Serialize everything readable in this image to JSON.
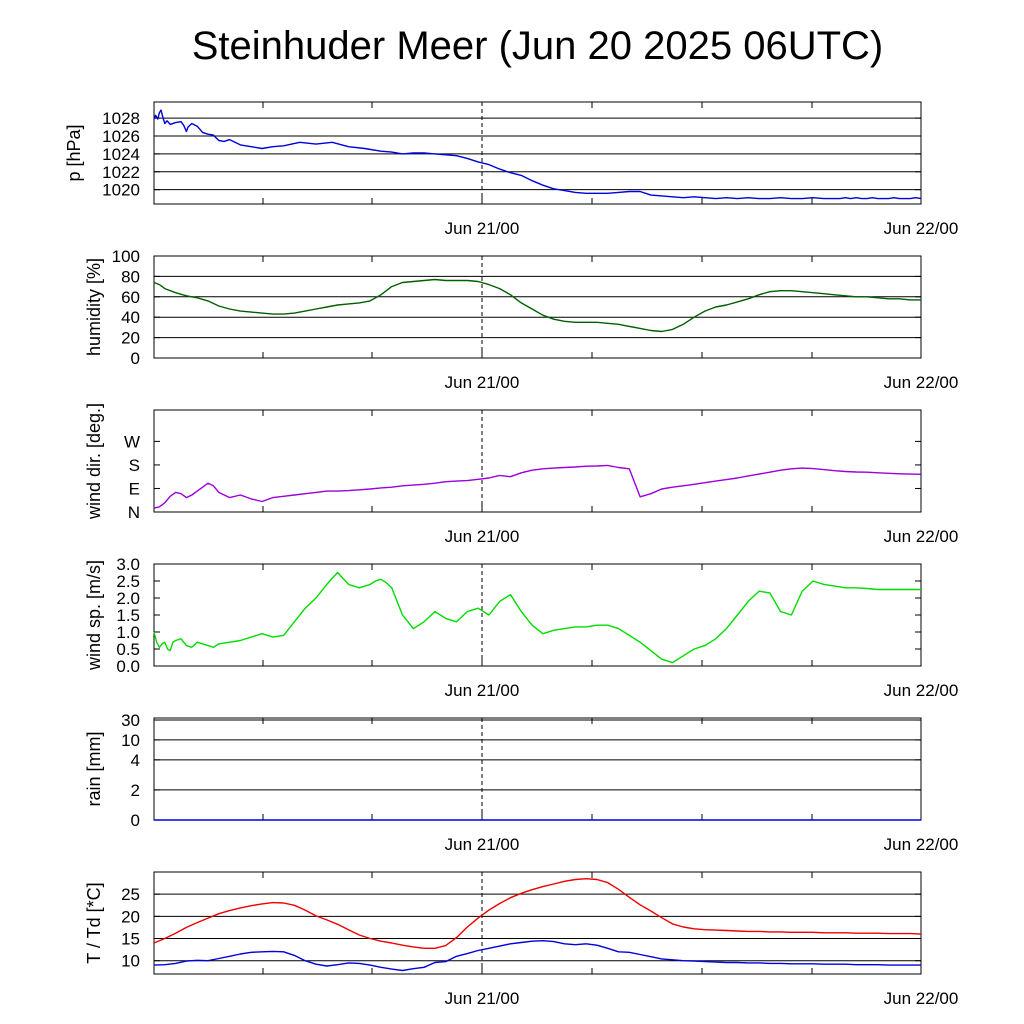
{
  "title": "Steinhuder Meer (Jun 20 2025 06UTC)",
  "x_axis": {
    "range": [
      "2025-06-20 06:00 UTC",
      "2025-06-22 00:00 UTC"
    ],
    "tick_labels": [
      {
        "label": "Jun 21/00",
        "time": "2025-06-21 00:00 UTC"
      },
      {
        "label": "Jun 22/00",
        "time": "2025-06-22 00:00 UTC"
      }
    ],
    "dashed_marker_time": "2025-06-21 00:00 UTC"
  },
  "chart_data": [
    {
      "type": "line",
      "ylabel": "p [hPa]",
      "ylim": [
        1018.4,
        1029.8
      ],
      "yticks": [
        1020,
        1022,
        1024,
        1026,
        1028
      ],
      "gridlines": [
        1020,
        1022,
        1024,
        1026,
        1028
      ],
      "series": [
        {
          "color": "#0000dd",
          "x_hours": [
            0,
            0.3,
            0.7,
            1.0,
            1.3,
            1.6,
            2.0,
            2.4,
            3,
            4,
            5,
            5.5,
            6,
            6.3,
            7,
            8,
            9,
            10,
            11,
            12,
            13,
            14,
            16,
            18,
            20,
            22,
            24,
            27,
            30,
            33,
            36,
            39,
            42,
            44,
            46,
            48,
            50,
            52,
            54,
            56,
            58,
            60,
            62,
            64,
            66,
            68,
            70,
            72,
            74,
            76,
            78,
            80,
            82,
            84,
            86,
            88,
            90,
            92,
            94,
            96,
            98,
            100,
            102,
            104,
            106,
            108,
            110,
            112,
            114,
            116,
            118,
            120,
            122,
            124,
            126,
            127,
            128,
            129,
            130,
            131,
            132,
            133,
            134,
            135,
            136,
            137,
            138,
            139,
            140,
            141,
            142
          ],
          "values": [
            1027.9,
            1028.3,
            1027.9,
            1028.6,
            1028.9,
            1028.2,
            1027.4,
            1027.7,
            1027.3,
            1027.5,
            1027.6,
            1027.2,
            1026.5,
            1027.0,
            1027.4,
            1027.1,
            1026.4,
            1026.2,
            1026.1,
            1025.5,
            1025.4,
            1025.6,
            1025.0,
            1024.8,
            1024.6,
            1024.8,
            1024.9,
            1025.3,
            1025.1,
            1025.3,
            1024.8,
            1024.6,
            1024.3,
            1024.2,
            1024.0,
            1024.1,
            1024.1,
            1024.0,
            1023.9,
            1023.8,
            1023.5,
            1023.1,
            1022.8,
            1022.3,
            1021.9,
            1021.6,
            1021.0,
            1020.5,
            1020.1,
            1019.9,
            1019.7,
            1019.6,
            1019.6,
            1019.6,
            1019.7,
            1019.8,
            1019.8,
            1019.4,
            1019.3,
            1019.2,
            1019.1,
            1019.2,
            1019.1,
            1019.0,
            1019.1,
            1019.0,
            1019.1,
            1019.0,
            1019.0,
            1019.1,
            1019.0,
            1019.0,
            1019.1,
            1019.0,
            1019.0,
            1019.0,
            1019.1,
            1019.0,
            1019.1,
            1019.0,
            1019.0,
            1019.1,
            1019.0,
            1019.0,
            1019.0,
            1019.1,
            1019.0,
            1019.0,
            1019.0,
            1019.1,
            1019.0
          ]
        }
      ]
    },
    {
      "type": "line",
      "ylabel": "humidity [%]",
      "ylim": [
        0,
        100
      ],
      "yticks": [
        0,
        20,
        40,
        60,
        80,
        100
      ],
      "gridlines": [
        20,
        40,
        60,
        80
      ],
      "series": [
        {
          "color": "#006000",
          "x_hours": [
            0,
            1,
            2,
            4,
            6,
            8,
            10,
            12,
            14,
            16,
            18,
            20,
            22,
            24,
            26,
            28,
            30,
            32,
            34,
            36,
            38,
            40,
            42,
            44,
            46,
            48,
            50,
            52,
            54,
            56,
            58,
            60,
            62,
            64,
            66,
            68,
            70,
            72,
            74,
            76,
            78,
            80,
            82,
            84,
            86,
            88,
            90,
            92,
            94,
            96,
            98,
            100,
            102,
            104,
            106,
            108,
            110,
            112,
            114,
            116,
            118,
            120,
            122,
            124,
            126,
            128,
            130,
            132,
            134,
            136,
            138,
            140,
            142
          ],
          "values": [
            74,
            72,
            68,
            64,
            61,
            59,
            56,
            51,
            48,
            46,
            45,
            44,
            43,
            43,
            44,
            46,
            48,
            50,
            52,
            53,
            54,
            56,
            62,
            70,
            74,
            75,
            76,
            77,
            76,
            76,
            76,
            75,
            72,
            68,
            62,
            54,
            48,
            42,
            38,
            36,
            35,
            35,
            35,
            34,
            33,
            31,
            29,
            27,
            26,
            28,
            33,
            40,
            46,
            50,
            52,
            55,
            58,
            62,
            65,
            66,
            66,
            65,
            64,
            63,
            62,
            61,
            60,
            60,
            59,
            58,
            58,
            57,
            57
          ]
        }
      ]
    },
    {
      "type": "line",
      "ylabel": "wind dir. [deg.]",
      "ylim": [
        0,
        390
      ],
      "yticks": [
        0,
        90,
        180,
        270
      ],
      "ytick_labels": [
        "N",
        "E",
        "S",
        "W"
      ],
      "gridlines": [],
      "series": [
        {
          "color": "#9900dd",
          "x_hours": [
            0,
            1,
            2,
            3,
            4,
            5,
            6,
            7,
            8,
            9,
            10,
            11,
            12,
            14,
            16,
            18,
            20,
            22,
            24,
            26,
            28,
            30,
            32,
            34,
            36,
            38,
            40,
            42,
            44,
            46,
            48,
            50,
            52,
            54,
            56,
            58,
            60,
            62,
            64,
            66,
            68,
            70,
            72,
            74,
            76,
            78,
            80,
            82,
            84,
            86,
            88,
            90,
            92,
            94,
            96,
            98,
            100,
            102,
            104,
            106,
            108,
            110,
            112,
            114,
            116,
            118,
            120,
            122,
            124,
            126,
            128,
            130,
            132,
            134,
            136,
            138,
            140,
            142
          ],
          "values": [
            15,
            20,
            35,
            60,
            75,
            70,
            55,
            65,
            80,
            95,
            110,
            100,
            75,
            55,
            65,
            50,
            40,
            55,
            60,
            65,
            70,
            75,
            80,
            80,
            82,
            85,
            88,
            92,
            95,
            100,
            103,
            106,
            110,
            116,
            118,
            120,
            125,
            130,
            140,
            135,
            150,
            160,
            165,
            168,
            170,
            172,
            175,
            176,
            178,
            170,
            165,
            58,
            70,
            88,
            95,
            100,
            106,
            112,
            118,
            124,
            130,
            138,
            145,
            152,
            160,
            165,
            168,
            166,
            162,
            158,
            155,
            153,
            152,
            150,
            148,
            146,
            145,
            144
          ]
        }
      ]
    },
    {
      "type": "line",
      "ylabel": "wind sp. [m/s]",
      "ylim": [
        0,
        3.0
      ],
      "yticks": [
        0.0,
        0.5,
        1.0,
        1.5,
        2.0,
        2.5,
        3.0
      ],
      "ytick_labels": [
        "0.0",
        "0.5",
        "1.0",
        "1.5",
        "2.0",
        "2.5",
        "3.0"
      ],
      "gridlines": [],
      "series": [
        {
          "color": "#00dd00",
          "x_hours": [
            0,
            0.5,
            1,
            1.5,
            2,
            2.5,
            3,
            3.5,
            4,
            5,
            6,
            7,
            8,
            9,
            10,
            11,
            12,
            14,
            16,
            18,
            20,
            22,
            24,
            26,
            28,
            30,
            32,
            34,
            36,
            38,
            40,
            41,
            42,
            43,
            44,
            46,
            48,
            50,
            52,
            54,
            56,
            58,
            60,
            62,
            64,
            66,
            68,
            70,
            72,
            74,
            76,
            78,
            80,
            82,
            84,
            86,
            88,
            90,
            92,
            94,
            96,
            98,
            100,
            102,
            104,
            106,
            108,
            110,
            112,
            114,
            116,
            118,
            120,
            122,
            124,
            126,
            128,
            130,
            132,
            134,
            136,
            138,
            140,
            142
          ],
          "values": [
            1.0,
            0.7,
            0.55,
            0.65,
            0.7,
            0.5,
            0.45,
            0.7,
            0.75,
            0.8,
            0.6,
            0.55,
            0.7,
            0.65,
            0.6,
            0.55,
            0.65,
            0.7,
            0.75,
            0.85,
            0.95,
            0.85,
            0.9,
            1.3,
            1.7,
            2.0,
            2.4,
            2.75,
            2.4,
            2.3,
            2.4,
            2.5,
            2.55,
            2.45,
            2.3,
            1.5,
            1.1,
            1.3,
            1.6,
            1.4,
            1.3,
            1.6,
            1.7,
            1.5,
            1.9,
            2.1,
            1.6,
            1.2,
            0.95,
            1.05,
            1.1,
            1.15,
            1.15,
            1.2,
            1.2,
            1.1,
            0.9,
            0.7,
            0.45,
            0.2,
            0.1,
            0.3,
            0.5,
            0.6,
            0.8,
            1.1,
            1.5,
            1.9,
            2.2,
            2.15,
            1.6,
            1.5,
            2.2,
            2.5,
            2.4,
            2.35,
            2.3,
            2.3,
            2.28,
            2.25,
            2.25,
            2.25,
            2.25,
            2.25
          ]
        }
      ]
    },
    {
      "type": "line",
      "ylabel": "rain [mm]",
      "ylim": [
        0,
        30
      ],
      "yscale": "nonlinear",
      "yticks": [
        0,
        2,
        4,
        10,
        30
      ],
      "ytick_labels": [
        "0",
        "2",
        "4",
        "10",
        "30"
      ],
      "gridlines": [
        2,
        4,
        10,
        30
      ],
      "series": [
        {
          "color": "#0000dd",
          "x_hours": [
            0,
            142
          ],
          "values": [
            0,
            0
          ]
        }
      ]
    },
    {
      "type": "line",
      "ylabel": "T / Td [*C]",
      "ylim": [
        7,
        30
      ],
      "yticks": [
        10,
        15,
        20,
        25
      ],
      "gridlines": [
        10,
        15,
        20,
        25
      ],
      "series": [
        {
          "color": "#ee0000",
          "x_hours": [
            0,
            2,
            4,
            6,
            8,
            10,
            12,
            14,
            16,
            18,
            20,
            22,
            24,
            26,
            28,
            30,
            32,
            34,
            36,
            38,
            40,
            42,
            44,
            46,
            48,
            50,
            52,
            54,
            56,
            58,
            60,
            62,
            64,
            66,
            68,
            70,
            72,
            74,
            76,
            78,
            80,
            82,
            84,
            86,
            88,
            90,
            92,
            94,
            96,
            98,
            100,
            102,
            104,
            106,
            108,
            110,
            112,
            114,
            116,
            118,
            120,
            122,
            124,
            126,
            128,
            130,
            132,
            134,
            136,
            138,
            140,
            142
          ],
          "values": [
            14,
            15,
            16.2,
            17.5,
            18.6,
            19.6,
            20.6,
            21.3,
            21.9,
            22.4,
            22.8,
            23.1,
            23.0,
            22.5,
            21.4,
            20.1,
            19.2,
            18.2,
            17.0,
            15.8,
            15.0,
            14.4,
            14.0,
            13.5,
            13.1,
            12.8,
            12.8,
            13.4,
            15.2,
            17.6,
            19.6,
            21.4,
            22.9,
            24.2,
            25.2,
            26.0,
            26.7,
            27.3,
            27.9,
            28.3,
            28.5,
            28.3,
            27.6,
            26.1,
            24.3,
            22.6,
            21.2,
            19.7,
            18.3,
            17.6,
            17.2,
            17.0,
            16.9,
            16.8,
            16.7,
            16.6,
            16.6,
            16.5,
            16.5,
            16.4,
            16.4,
            16.4,
            16.3,
            16.3,
            16.3,
            16.2,
            16.2,
            16.2,
            16.1,
            16.1,
            16.1,
            16.0
          ]
        },
        {
          "color": "#0000dd",
          "x_hours": [
            0,
            2,
            4,
            6,
            8,
            10,
            12,
            14,
            16,
            18,
            20,
            22,
            24,
            26,
            28,
            30,
            32,
            34,
            36,
            38,
            40,
            42,
            44,
            46,
            48,
            50,
            52,
            54,
            56,
            58,
            60,
            62,
            64,
            66,
            68,
            70,
            72,
            74,
            76,
            78,
            80,
            82,
            84,
            86,
            88,
            90,
            92,
            94,
            96,
            98,
            100,
            102,
            104,
            106,
            108,
            110,
            112,
            114,
            116,
            118,
            120,
            122,
            124,
            126,
            128,
            130,
            132,
            134,
            136,
            138,
            140,
            142
          ],
          "values": [
            9.0,
            9.1,
            9.4,
            9.9,
            10.1,
            10.0,
            10.5,
            11.0,
            11.5,
            11.9,
            12.0,
            12.1,
            12.0,
            11.2,
            10.0,
            9.2,
            8.8,
            9.1,
            9.5,
            9.4,
            9.0,
            8.5,
            8.1,
            7.8,
            8.2,
            8.5,
            9.6,
            9.8,
            11.0,
            11.6,
            12.3,
            12.8,
            13.3,
            13.8,
            14.1,
            14.4,
            14.5,
            14.3,
            13.8,
            13.6,
            13.8,
            13.5,
            12.8,
            12.0,
            11.9,
            11.4,
            10.9,
            10.4,
            10.2,
            10.0,
            9.9,
            9.8,
            9.7,
            9.6,
            9.6,
            9.5,
            9.5,
            9.4,
            9.4,
            9.3,
            9.3,
            9.3,
            9.2,
            9.2,
            9.2,
            9.1,
            9.1,
            9.1,
            9.0,
            9.0,
            9.0,
            9.0
          ]
        }
      ]
    }
  ]
}
